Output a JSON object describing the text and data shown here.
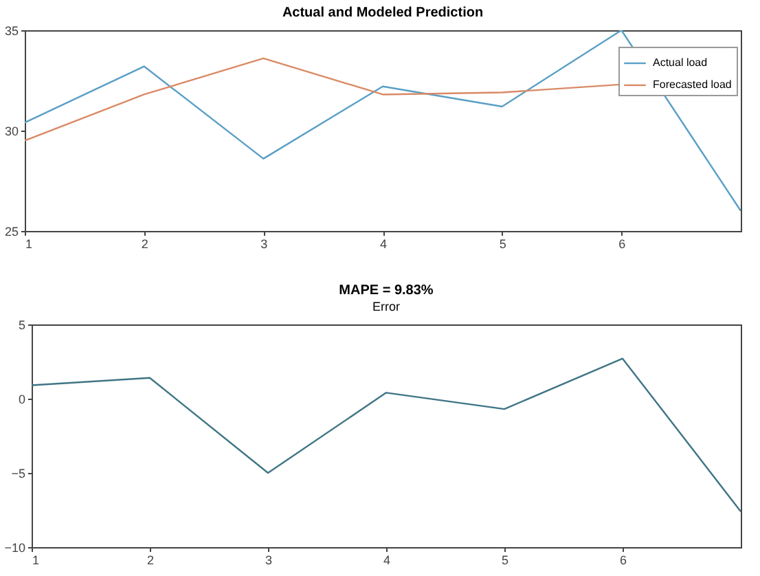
{
  "chart_data": [
    {
      "type": "line",
      "title": "Actual and Modeled Prediction",
      "x": [
        1,
        2,
        3,
        4,
        5,
        6,
        7
      ],
      "xlim": [
        1,
        7
      ],
      "xticks": [
        1,
        2,
        3,
        4,
        5,
        6
      ],
      "ylim": [
        25,
        35
      ],
      "yticks": [
        25,
        30,
        35
      ],
      "legend": "top right",
      "grid": false,
      "series": [
        {
          "name": "Actual load",
          "color": "#5a9fc6",
          "values": [
            30.4,
            33.2,
            28.6,
            32.2,
            31.2,
            35.0,
            26.0
          ]
        },
        {
          "name": "Forecasted load",
          "color": "#d98a66",
          "values": [
            29.5,
            31.8,
            33.6,
            31.8,
            31.9,
            32.3,
            null
          ]
        }
      ]
    },
    {
      "type": "line",
      "title": "MAPE = 9.83%",
      "subtitle": "Error",
      "x": [
        1,
        2,
        3,
        4,
        5,
        6,
        7
      ],
      "xlim": [
        1,
        7
      ],
      "xticks": [
        1,
        2,
        3,
        4,
        5,
        6
      ],
      "ylim": [
        -10,
        5
      ],
      "yticks": [
        -10,
        -5,
        0,
        5
      ],
      "grid": false,
      "series": [
        {
          "color": "#3f7585",
          "values": [
            0.9,
            1.4,
            -5.0,
            0.4,
            -0.7,
            2.7,
            -7.6
          ]
        }
      ]
    }
  ]
}
